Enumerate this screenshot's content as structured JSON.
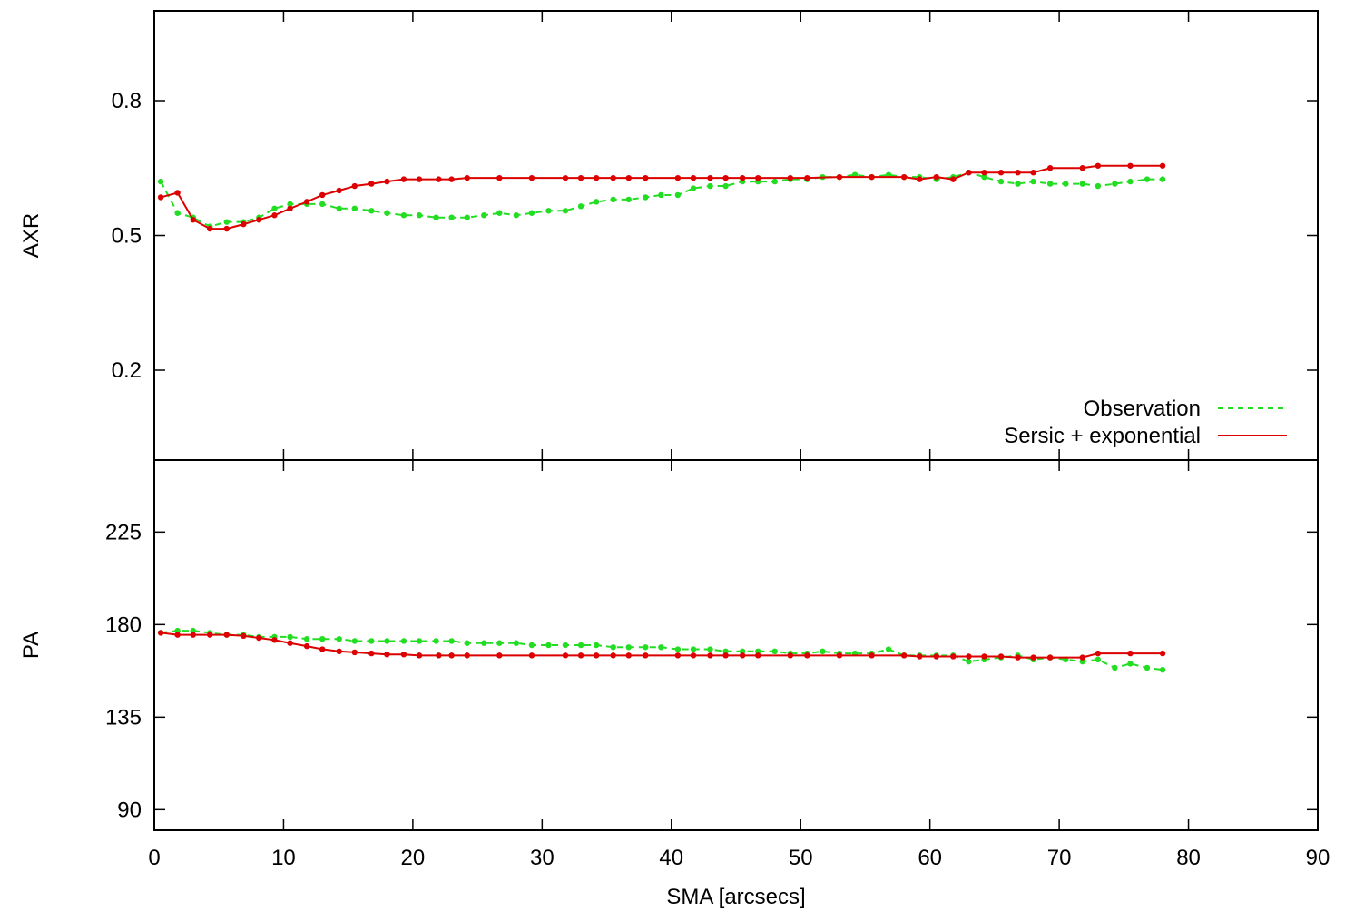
{
  "colors": {
    "observation": "#22dd22",
    "model": "#dd0000",
    "frame": "#000000",
    "background": "#ffffff"
  },
  "chart_data": [
    {
      "type": "line",
      "panel": "top",
      "ylabel": "AXR",
      "xlabel": "",
      "xlim": [
        0,
        90
      ],
      "ylim": [
        0,
        1
      ],
      "yticks": [
        0.2,
        0.5,
        0.8
      ],
      "ytick_labels": [
        "0.2",
        "0.5",
        "0.8"
      ],
      "legend_position": "bottom-right",
      "series": [
        {
          "name": "Observation",
          "style": "dashed",
          "color": "#22dd22",
          "x": [
            0.5,
            1.8,
            3.0,
            4.3,
            5.6,
            6.9,
            8.1,
            9.3,
            10.5,
            11.8,
            13.0,
            14.3,
            15.5,
            16.8,
            18.0,
            19.3,
            20.5,
            21.8,
            23.0,
            24.2,
            25.5,
            26.7,
            28.0,
            29.2,
            30.5,
            31.8,
            33.0,
            34.2,
            35.5,
            36.7,
            38.0,
            39.2,
            40.5,
            41.7,
            43.0,
            44.2,
            45.5,
            46.7,
            48.0,
            49.2,
            50.5,
            51.7,
            53.0,
            54.2,
            55.5,
            56.8,
            58.0,
            59.2,
            60.5,
            61.8,
            63.0,
            64.2,
            65.5,
            66.8,
            68.0,
            69.3,
            70.5,
            71.8,
            73.0,
            74.3,
            75.5,
            76.8,
            78.0
          ],
          "y": [
            0.62,
            0.55,
            0.54,
            0.52,
            0.53,
            0.53,
            0.54,
            0.56,
            0.57,
            0.57,
            0.57,
            0.56,
            0.56,
            0.555,
            0.55,
            0.545,
            0.545,
            0.54,
            0.54,
            0.54,
            0.545,
            0.55,
            0.545,
            0.55,
            0.555,
            0.555,
            0.565,
            0.575,
            0.58,
            0.58,
            0.585,
            0.59,
            0.59,
            0.605,
            0.61,
            0.61,
            0.62,
            0.62,
            0.62,
            0.625,
            0.625,
            0.63,
            0.63,
            0.635,
            0.63,
            0.635,
            0.63,
            0.63,
            0.625,
            0.63,
            0.64,
            0.63,
            0.62,
            0.615,
            0.62,
            0.615,
            0.615,
            0.615,
            0.61,
            0.615,
            0.62,
            0.625,
            0.625
          ]
        },
        {
          "name": "Sersic + exponential",
          "style": "solid",
          "color": "#dd0000",
          "x": [
            0.5,
            1.8,
            3.0,
            4.3,
            5.6,
            6.9,
            8.1,
            9.3,
            10.5,
            11.8,
            13.0,
            14.3,
            15.5,
            16.8,
            18.0,
            19.3,
            20.5,
            22.0,
            23.0,
            24.2,
            26.7,
            29.2,
            31.8,
            33.0,
            34.2,
            35.5,
            36.7,
            38.0,
            40.5,
            41.7,
            43.0,
            44.2,
            45.5,
            46.7,
            49.2,
            50.5,
            53.0,
            55.5,
            58.0,
            59.2,
            60.5,
            61.8,
            63.0,
            64.2,
            65.5,
            66.8,
            68.0,
            69.3,
            71.8,
            73.0,
            75.5,
            78.0
          ],
          "y": [
            0.585,
            0.595,
            0.535,
            0.515,
            0.515,
            0.525,
            0.535,
            0.545,
            0.56,
            0.575,
            0.59,
            0.6,
            0.61,
            0.615,
            0.62,
            0.625,
            0.625,
            0.625,
            0.625,
            0.628,
            0.628,
            0.628,
            0.628,
            0.628,
            0.628,
            0.628,
            0.628,
            0.628,
            0.628,
            0.628,
            0.628,
            0.628,
            0.628,
            0.628,
            0.628,
            0.628,
            0.63,
            0.63,
            0.63,
            0.625,
            0.63,
            0.625,
            0.64,
            0.64,
            0.64,
            0.64,
            0.64,
            0.65,
            0.65,
            0.655,
            0.655,
            0.655
          ]
        }
      ]
    },
    {
      "type": "line",
      "panel": "bottom",
      "ylabel": "PA",
      "xlabel": "SMA [arcsecs]",
      "xlim": [
        0,
        90
      ],
      "ylim": [
        80,
        260
      ],
      "xticks": [
        0,
        10,
        20,
        30,
        40,
        50,
        60,
        70,
        80,
        90
      ],
      "xtick_labels": [
        "0",
        "10",
        "20",
        "30",
        "40",
        "50",
        "60",
        "70",
        "80",
        "90"
      ],
      "yticks": [
        90,
        135,
        180,
        225
      ],
      "ytick_labels": [
        "90",
        "135",
        "180",
        "225"
      ],
      "series": [
        {
          "name": "Observation",
          "style": "dashed",
          "color": "#22dd22",
          "x": [
            0.5,
            1.8,
            3.0,
            4.3,
            5.6,
            6.9,
            8.1,
            9.3,
            10.5,
            11.8,
            13.0,
            14.3,
            15.5,
            16.8,
            18.0,
            19.3,
            20.5,
            21.8,
            23.0,
            24.2,
            25.5,
            26.7,
            28.0,
            29.2,
            30.5,
            31.8,
            33.0,
            34.2,
            35.5,
            36.7,
            38.0,
            39.2,
            40.5,
            41.7,
            43.0,
            44.2,
            45.5,
            46.7,
            48.0,
            49.2,
            50.5,
            51.7,
            53.0,
            54.2,
            55.5,
            56.8,
            58.0,
            59.2,
            60.5,
            61.8,
            63.0,
            64.2,
            65.5,
            66.8,
            68.0,
            69.3,
            70.5,
            71.8,
            73.0,
            74.3,
            75.5,
            76.8,
            78.0
          ],
          "y": [
            176,
            177,
            177,
            176,
            175,
            175,
            174,
            174,
            174,
            173,
            173,
            173,
            172,
            172,
            172,
            172,
            172,
            172,
            172,
            171,
            171,
            171,
            171,
            170,
            170,
            170,
            170,
            170,
            169,
            169,
            169,
            169,
            168,
            168,
            168,
            167,
            167,
            167,
            167,
            166,
            166,
            167,
            166,
            166,
            166,
            168,
            165,
            165,
            165,
            165,
            162,
            163,
            164,
            165,
            163,
            164,
            163,
            162,
            163,
            159,
            161,
            159,
            158
          ]
        },
        {
          "name": "Sersic + exponential",
          "style": "solid",
          "color": "#dd0000",
          "x": [
            0.5,
            1.8,
            3.0,
            4.3,
            5.6,
            6.9,
            8.1,
            9.3,
            10.5,
            11.8,
            13.0,
            14.3,
            15.5,
            16.8,
            18.0,
            19.3,
            20.5,
            22.0,
            23.0,
            24.2,
            26.7,
            29.2,
            31.8,
            33.0,
            34.2,
            35.5,
            36.7,
            38.0,
            40.5,
            41.7,
            43.0,
            44.2,
            45.5,
            46.7,
            49.2,
            50.5,
            53.0,
            55.5,
            58.0,
            59.2,
            60.5,
            61.8,
            63.0,
            64.2,
            65.5,
            66.8,
            68.0,
            69.3,
            71.8,
            73.0,
            75.5,
            78.0
          ],
          "y": [
            176,
            175,
            175,
            175,
            175,
            174.5,
            173.5,
            172.5,
            171,
            169.5,
            168,
            167,
            166.5,
            166,
            165.5,
            165.5,
            165,
            165,
            165,
            165,
            165,
            165,
            165,
            165,
            165,
            165,
            165,
            165,
            165,
            165,
            165,
            165,
            165,
            165,
            165,
            165,
            165,
            165,
            165,
            164.5,
            164.5,
            164.5,
            164.5,
            164.5,
            164.5,
            164,
            164,
            164,
            164,
            166,
            166,
            166
          ]
        }
      ]
    }
  ],
  "legend": {
    "entries": [
      {
        "label": "Observation",
        "style": "dashed",
        "color": "#22dd22"
      },
      {
        "label": "Sersic + exponential",
        "style": "solid",
        "color": "#dd0000"
      }
    ]
  }
}
